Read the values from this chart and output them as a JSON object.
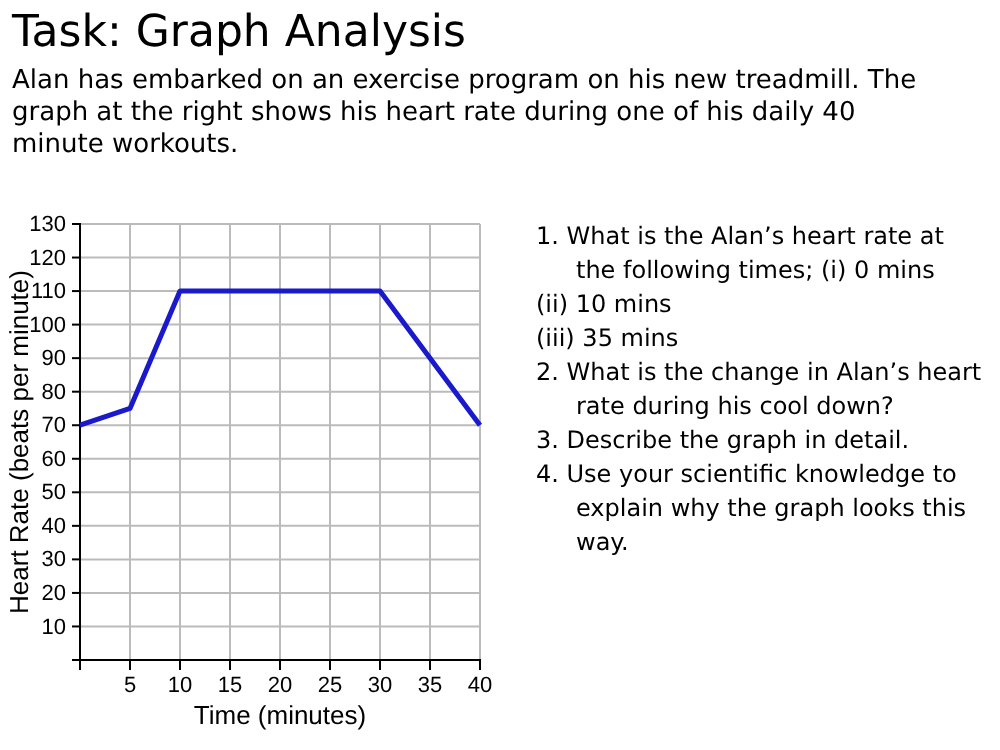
{
  "chart_data": {
    "type": "line",
    "title": "Task: Graph Analysis",
    "subtitle": "Alan has embarked on an exercise program on his new treadmill. The graph at the right shows his heart rate during one of his daily 40 minute workouts.",
    "xlabel": "Time (minutes)",
    "ylabel": "Heart Rate (beats per minute)",
    "x": [
      0,
      5,
      10,
      30,
      40
    ],
    "series": [
      {
        "color": "#1a1acc",
        "values": [
          70,
          75,
          110,
          110,
          70
        ]
      }
    ],
    "xlim": [
      0,
      40
    ],
    "xticks": [
      5,
      10,
      15,
      20,
      25,
      30,
      35,
      40
    ],
    "ylim": [
      0,
      130
    ],
    "yticks": [
      10,
      20,
      30,
      40,
      50,
      60,
      70,
      80,
      90,
      100,
      110,
      120,
      130
    ],
    "grid": true,
    "marker": "none",
    "line_style": "solid",
    "annotations": [
      "1. What is the Alan’s heart rate at the following times; (i) 0 mins",
      "(ii) 10 mins",
      "(iii) 35 mins",
      "2. What is the change in Alan’s heart rate during his cool down?",
      "3. Describe the graph in detail.",
      "4. Use your scientific knowledge to explain why the graph looks this way."
    ]
  }
}
